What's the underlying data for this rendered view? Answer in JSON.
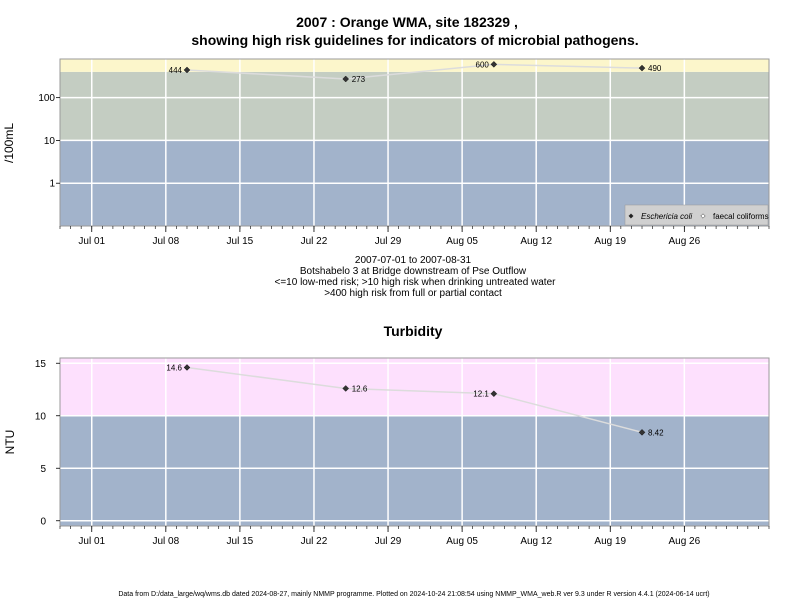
{
  "header": {
    "title_line1": "2007 : Orange WMA, site 182329 ,",
    "title_line2": "showing high risk guidelines for indicators of microbial pathogens."
  },
  "info": {
    "period": "2007-07-01 to 2007-08-31",
    "site_desc": "Botshabelo 3 at Bridge downstream of Pse Outflow",
    "guideline1": "<=10 low-med risk; >10 high risk when drinking untreated water",
    "guideline2": ">400 high risk from full or partial contact"
  },
  "footer": {
    "text": "Data from D:/data_large/wq/wms.db dated 2024-08-27, mainly NMMP programme. Plotted on 2024-10-24 21:08:54 using NMMP_WMA_web.R ver 9.3 under R version 4.4.1 (2024-06-14 ucrt)"
  },
  "colors": {
    "band_low": "#a2b3cb",
    "band_mid": "#c4cdc2",
    "band_high": "#fcf6cb",
    "band_turb_high": "#fde0fd",
    "gridline": "#ffffff",
    "series_line": "#dcdcdc",
    "marker": "#333333"
  },
  "chart_data": [
    {
      "type": "line",
      "title": "",
      "ylabel": "/100mL",
      "y_scale": "log",
      "y_ticks": [
        "1",
        "10",
        "100"
      ],
      "x_range": [
        "2007-06-28",
        "2007-09-03"
      ],
      "x_ticks": [
        "Jul 01",
        "Jul 08",
        "Jul 15",
        "Jul 22",
        "Jul 29",
        "Aug 05",
        "Aug 12",
        "Aug 19",
        "Aug 26"
      ],
      "bands": [
        {
          "from": 0.1,
          "to": 10,
          "color": "#a2b3cb"
        },
        {
          "from": 10,
          "to": 400,
          "color": "#c4cdc2"
        },
        {
          "from": 400,
          "to": 800,
          "color": "#fcf6cb"
        }
      ],
      "series": [
        {
          "name": "Eschericia coli",
          "points": [
            {
              "x": "2007-07-10",
              "y": 444,
              "label": "444",
              "side": "left"
            },
            {
              "x": "2007-07-25",
              "y": 273,
              "label": "273",
              "side": "right"
            },
            {
              "x": "2007-08-08",
              "y": 600,
              "label": "600",
              "side": "left"
            },
            {
              "x": "2007-08-22",
              "y": 490,
              "label": "490",
              "side": "right"
            }
          ]
        }
      ],
      "legend": {
        "position": "bottom-right",
        "entries": [
          {
            "label": "Eschericia coli",
            "marker": "filled-diamond",
            "italic": true
          },
          {
            "label": "faecal coliforms",
            "marker": "open-diamond",
            "italic": false
          }
        ]
      }
    },
    {
      "type": "line",
      "title": "Turbidity",
      "ylabel": "NTU",
      "y_scale": "linear",
      "ylim": [
        -0.5,
        15.5
      ],
      "y_ticks": [
        "0",
        "5",
        "10",
        "15"
      ],
      "x_range": [
        "2007-06-28",
        "2007-09-03"
      ],
      "x_ticks": [
        "Jul 01",
        "Jul 08",
        "Jul 15",
        "Jul 22",
        "Jul 29",
        "Aug 05",
        "Aug 12",
        "Aug 19",
        "Aug 26"
      ],
      "bands": [
        {
          "from": -0.5,
          "to": 10,
          "color": "#a2b3cb"
        },
        {
          "from": 10,
          "to": 15.5,
          "color": "#fde0fd"
        }
      ],
      "series": [
        {
          "name": "",
          "points": [
            {
              "x": "2007-07-10",
              "y": 14.6,
              "label": "14.6",
              "side": "left"
            },
            {
              "x": "2007-07-25",
              "y": 12.6,
              "label": "12.6",
              "side": "right"
            },
            {
              "x": "2007-08-08",
              "y": 12.1,
              "label": "12.1",
              "side": "left"
            },
            {
              "x": "2007-08-22",
              "y": 8.42,
              "label": "8.42",
              "side": "right"
            }
          ]
        }
      ]
    }
  ]
}
